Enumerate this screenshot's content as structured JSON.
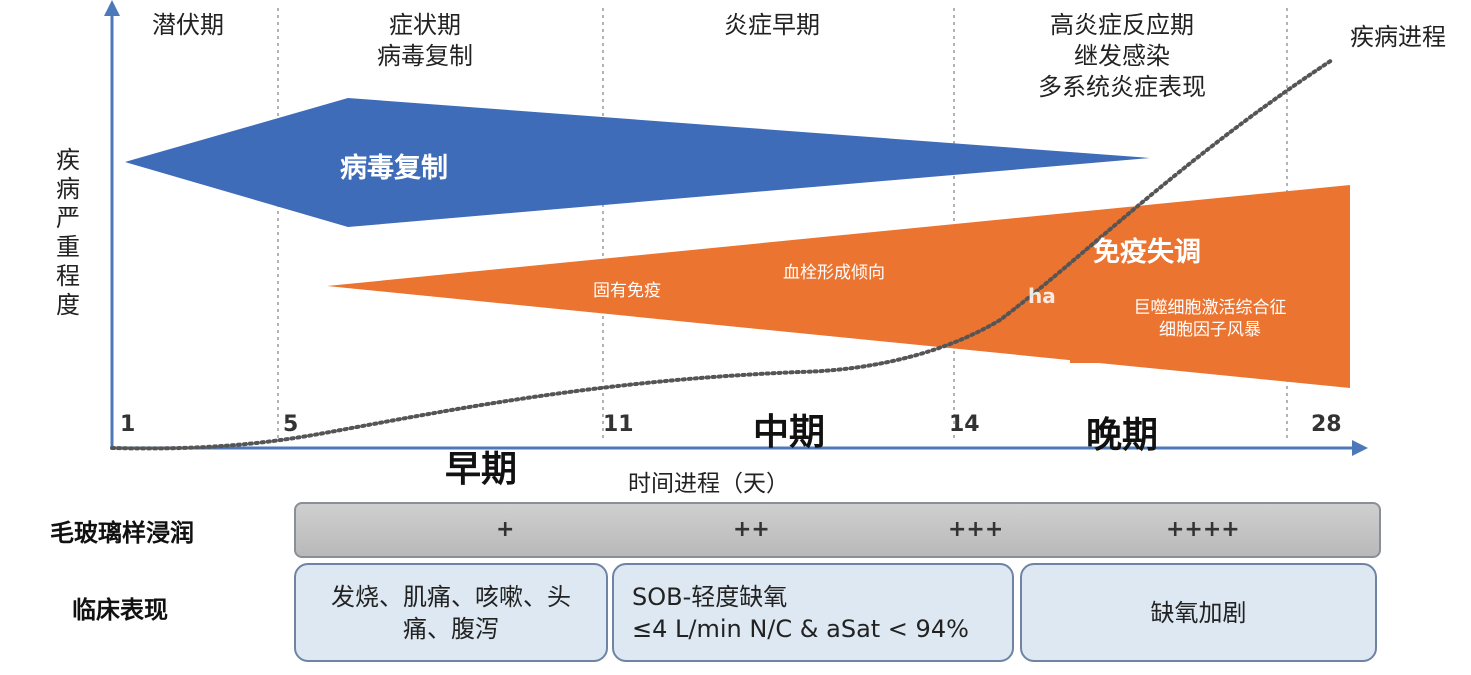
{
  "phases": {
    "latent": "潜伏期",
    "symptomatic_1": "症状期",
    "symptomatic_2": "病毒复制",
    "early_inflammation": "炎症早期",
    "hyper_1": "高炎症反应期",
    "hyper_2": "继发感染",
    "hyper_3": "多系统炎症表现"
  },
  "progress_label": "疾病进程",
  "y_axis_label": [
    "疾",
    "病",
    "严",
    "重",
    "程",
    "度"
  ],
  "x_axis_label": "时间进程（天）",
  "ticks": [
    "1",
    "5",
    "11",
    "14",
    "28"
  ],
  "stages": {
    "early": "早期",
    "middle": "中期",
    "late": "晚期"
  },
  "virus": {
    "label": "病毒复制",
    "color": "#3e6cb8"
  },
  "immune": {
    "label": "免疫失调",
    "innate": "固有免疫",
    "thrombosis": "血栓形成倾向",
    "cut_text": "ha",
    "mas_1": "巨噬细胞激活综合征",
    "mas_2": "细胞因子风暴",
    "color": "#ec7431"
  },
  "ggo": {
    "label": "毛玻璃样浸润",
    "markers": [
      "+",
      "++",
      "+++",
      "++++"
    ]
  },
  "clinical": {
    "label": "临床表现",
    "boxes": [
      {
        "lines": [
          "发烧、肌痛、咳嗽、头",
          "痛、腹泻"
        ]
      },
      {
        "lines": [
          "SOB-轻度缺氧",
          "≤4 L/min N/C & aSat < 94%"
        ]
      },
      {
        "lines": [
          "缺氧加剧"
        ]
      }
    ]
  }
}
